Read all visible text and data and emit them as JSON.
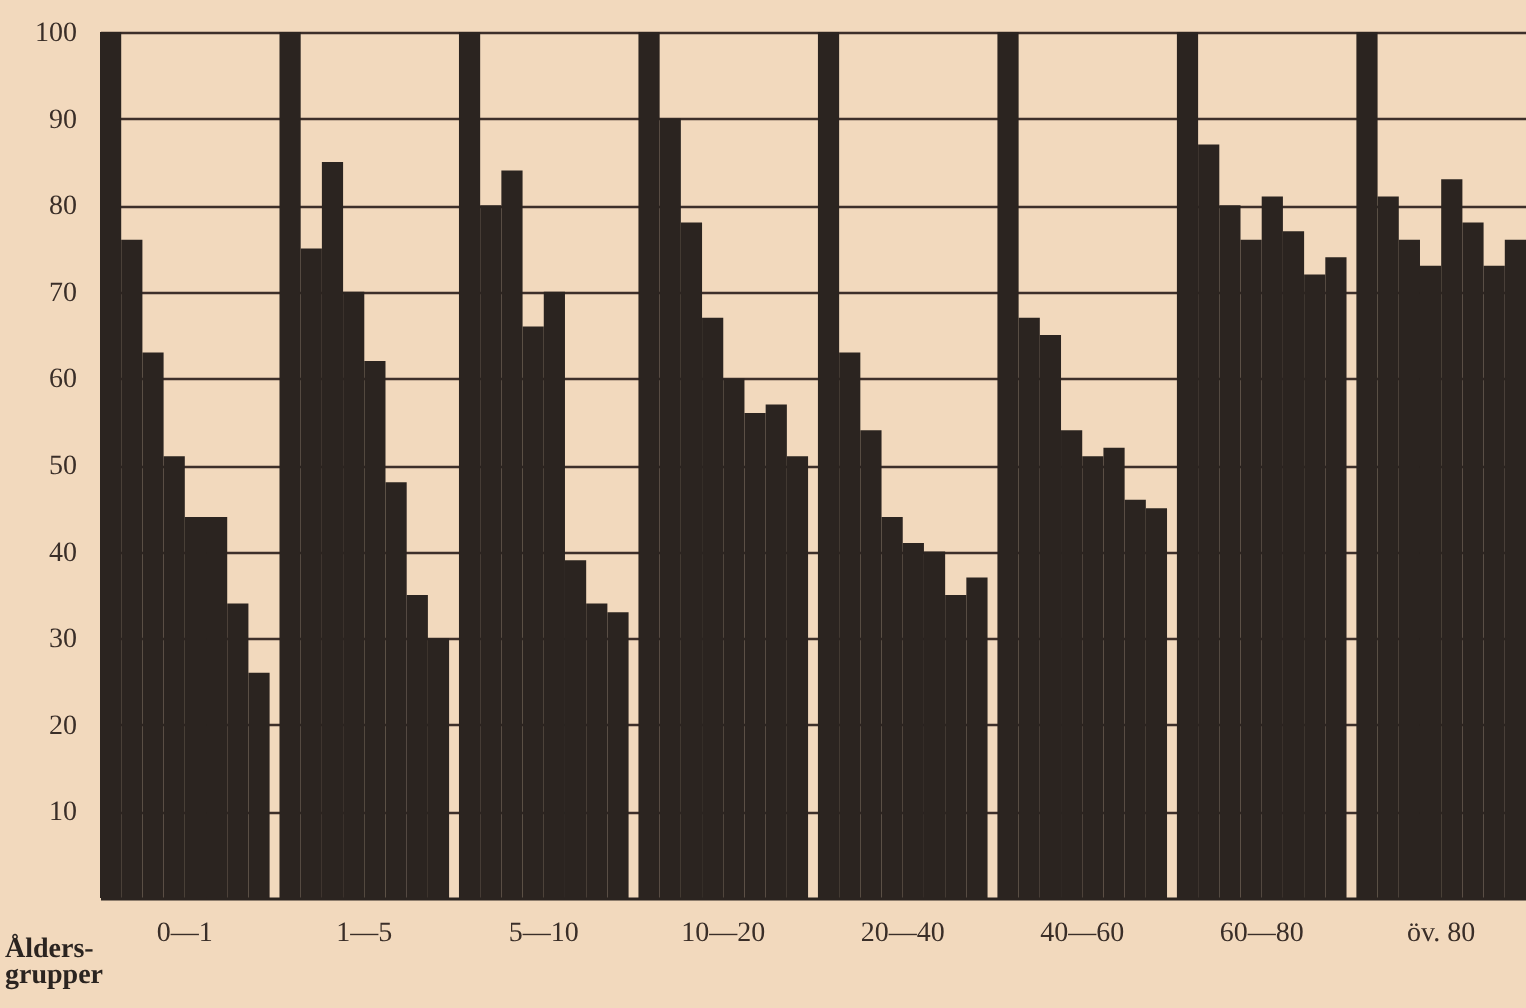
{
  "chart_data": {
    "type": "bar",
    "categories": [
      "0—1",
      "1—5",
      "5—10",
      "10—20",
      "20—40",
      "40—60",
      "60—80",
      "öv. 80"
    ],
    "xlabel": "Ålders-\ngrupper",
    "series": [
      {
        "color": "#2b2420",
        "values": [
          100,
          100,
          100,
          100,
          100,
          100,
          100,
          100
        ]
      },
      {
        "color": "#2b2420",
        "values": [
          76,
          75,
          80,
          90,
          63,
          67,
          87,
          81
        ]
      },
      {
        "color": "#2b2420",
        "values": [
          63,
          85,
          84,
          78,
          54,
          65,
          80,
          76
        ]
      },
      {
        "color": "#2b2420",
        "values": [
          51,
          70,
          66,
          67,
          44,
          54,
          76,
          73
        ]
      },
      {
        "color": "#2b2420",
        "values": [
          44,
          62,
          70,
          60,
          41,
          51,
          81,
          83
        ]
      },
      {
        "color": "#2b2420",
        "values": [
          44,
          48,
          39,
          56,
          40,
          52,
          77,
          78
        ]
      },
      {
        "color": "#2b2420",
        "values": [
          34,
          35,
          34,
          57,
          35,
          46,
          72,
          73
        ]
      },
      {
        "color": "#2b2420",
        "values": [
          26,
          30,
          33,
          51,
          37,
          45,
          74,
          76
        ]
      }
    ],
    "ylim": [
      0,
      100
    ],
    "yticks": [
      10,
      20,
      30,
      40,
      50,
      60,
      70,
      80,
      90,
      100
    ],
    "grid": "y"
  }
}
